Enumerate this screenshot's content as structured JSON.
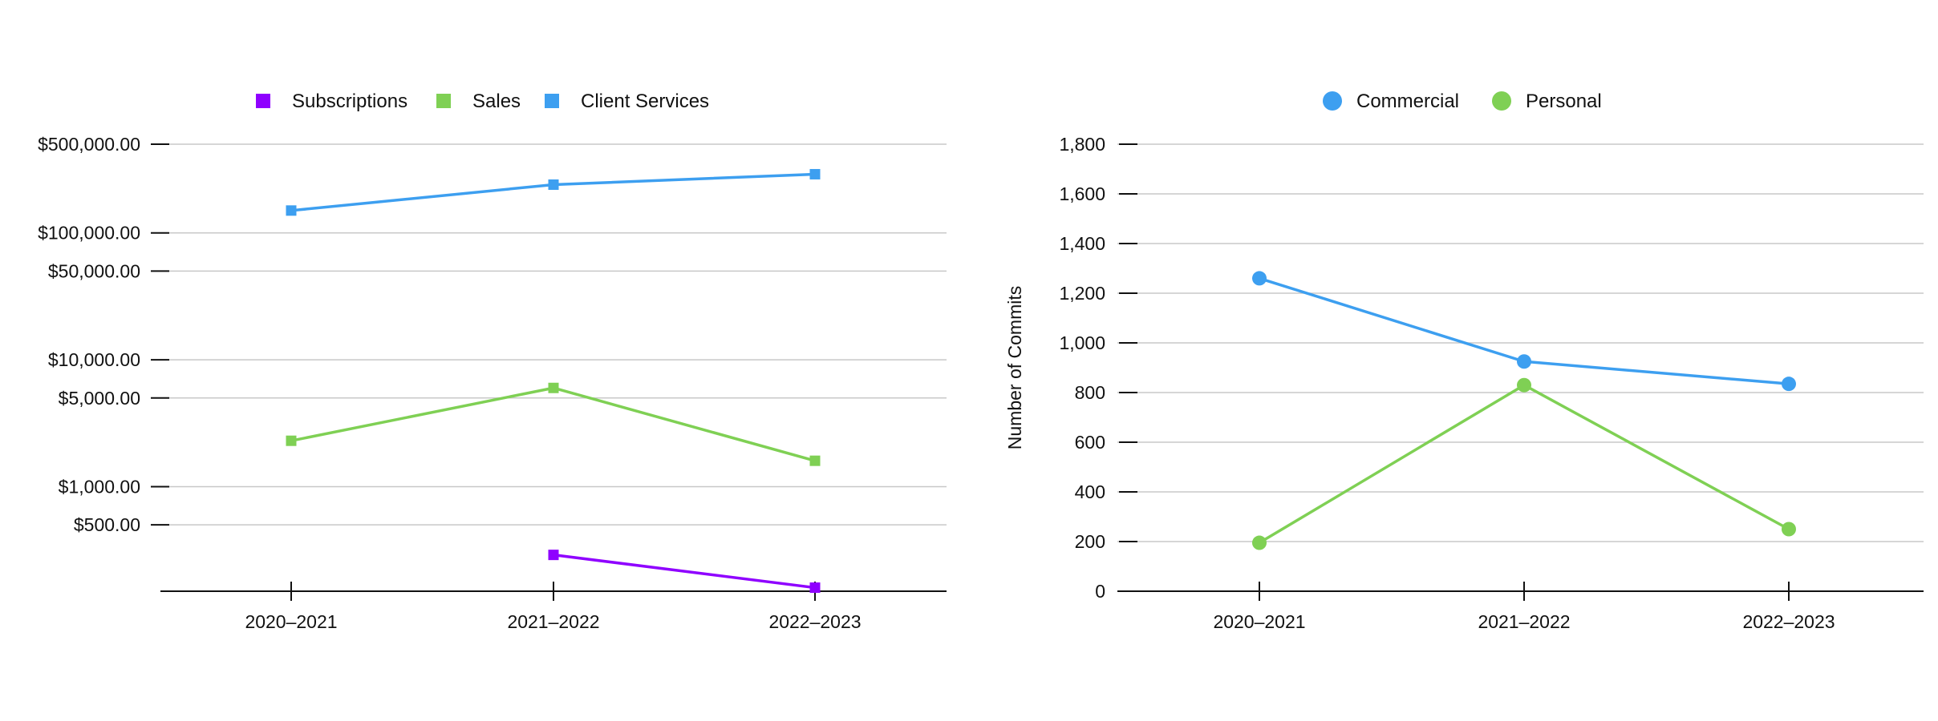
{
  "chart_data": [
    {
      "type": "line",
      "scale": "log",
      "title": "",
      "xlabel": "",
      "ylabel": "",
      "categories": [
        "2020–2021",
        "2021–2022",
        "2022–2023"
      ],
      "y_ticks": [
        {
          "value": 500000,
          "label": "$500,000.00"
        },
        {
          "value": 100000,
          "label": "$100,000.00"
        },
        {
          "value": 50000,
          "label": "$50,000.00"
        },
        {
          "value": 10000,
          "label": "$10,000.00"
        },
        {
          "value": 5000,
          "label": "$5,000.00"
        },
        {
          "value": 1000,
          "label": "$1,000.00"
        },
        {
          "value": 500,
          "label": "$500.00"
        }
      ],
      "ylim": [
        150,
        500000
      ],
      "marker": "square",
      "legend_position": "top",
      "grid": true,
      "series": [
        {
          "name": "Subscriptions",
          "color": "#8F00FF",
          "values": [
            null,
            290,
            160
          ]
        },
        {
          "name": "Sales",
          "color": "#7FD054",
          "values": [
            2300,
            6000,
            1600
          ]
        },
        {
          "name": "Client Services",
          "color": "#3D9FF0",
          "values": [
            150000,
            240000,
            290000
          ]
        }
      ]
    },
    {
      "type": "line",
      "scale": "linear",
      "title": "",
      "xlabel": "",
      "ylabel": "Number of Commits",
      "categories": [
        "2020–2021",
        "2021–2022",
        "2022–2023"
      ],
      "y_ticks": [
        {
          "value": 0,
          "label": "0"
        },
        {
          "value": 200,
          "label": "200"
        },
        {
          "value": 400,
          "label": "400"
        },
        {
          "value": 600,
          "label": "600"
        },
        {
          "value": 800,
          "label": "800"
        },
        {
          "value": 1000,
          "label": "1,000"
        },
        {
          "value": 1200,
          "label": "1,200"
        },
        {
          "value": 1400,
          "label": "1,400"
        },
        {
          "value": 1600,
          "label": "1,600"
        },
        {
          "value": 1800,
          "label": "1,800"
        }
      ],
      "ylim": [
        0,
        1800
      ],
      "marker": "circle",
      "legend_position": "top",
      "grid": true,
      "series": [
        {
          "name": "Commercial",
          "color": "#3D9FF0",
          "values": [
            1260,
            925,
            835
          ]
        },
        {
          "name": "Personal",
          "color": "#7FD054",
          "values": [
            195,
            830,
            250
          ]
        }
      ]
    }
  ]
}
